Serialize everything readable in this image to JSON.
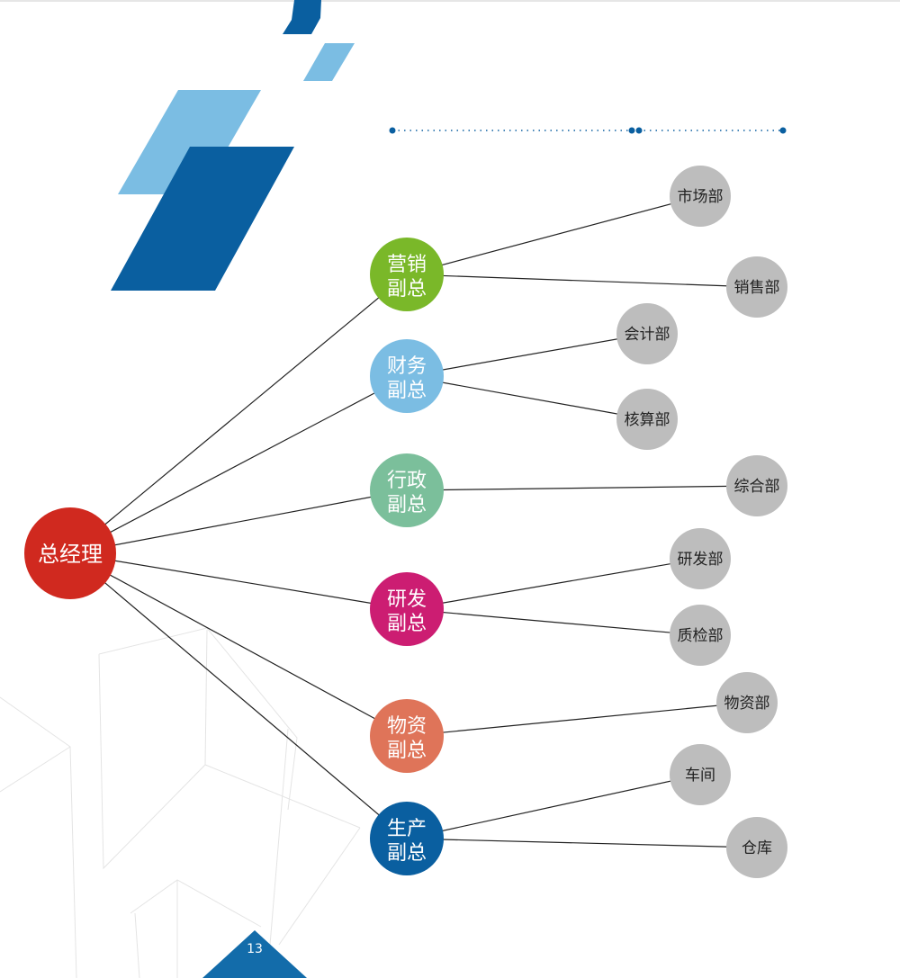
{
  "chart": {
    "root": {
      "id": "ceo",
      "label": "总经理",
      "color": "#d0291f"
    },
    "vps": [
      {
        "id": "vp1",
        "lines": [
          "营销",
          "副总"
        ],
        "color": "#7ab829",
        "departments": [
          "市场部",
          "销售部"
        ]
      },
      {
        "id": "vp2",
        "lines": [
          "财务",
          "副总"
        ],
        "color": "#7bbde3",
        "departments": [
          "会计部",
          "核算部"
        ]
      },
      {
        "id": "vp3",
        "lines": [
          "行政",
          "副总"
        ],
        "color": "#7bbf9b",
        "departments": [
          "综合部"
        ]
      },
      {
        "id": "vp4",
        "lines": [
          "研发",
          "副总"
        ],
        "color": "#cc1d72",
        "departments": [
          "研发部",
          "质检部"
        ]
      },
      {
        "id": "vp5",
        "lines": [
          "物资",
          "副总"
        ],
        "color": "#df7459",
        "departments": [
          "物资部"
        ]
      },
      {
        "id": "vp6",
        "lines": [
          "生产",
          "副总"
        ],
        "color": "#0a5fa0",
        "departments": [
          "车间",
          "仓库"
        ]
      }
    ],
    "department_color": "#bdbdbd",
    "line_color": "#222222"
  },
  "decoration": {
    "dark_blue": "#0a5fa0",
    "light_blue": "#7bbde3",
    "dotted_line_color": "#0a5fa0"
  },
  "page_number": "13"
}
